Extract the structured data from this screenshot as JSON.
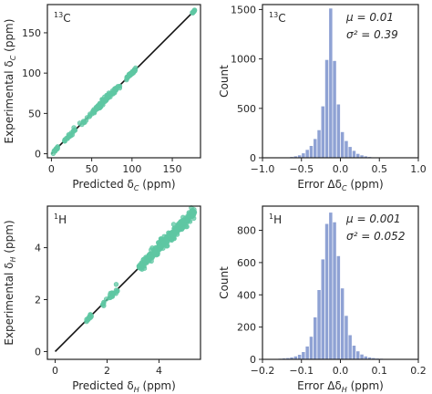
{
  "colors": {
    "scatter": "#5fc7a3",
    "line": "#111111",
    "bars": "#8fa2d4",
    "frame": "#222222",
    "text": "#262626"
  },
  "chart_data": [
    {
      "id": "c13_scatter",
      "type": "scatter",
      "title": "13C",
      "title_mass": "13",
      "title_element": "C",
      "xlabel": "Predicted δC (ppm)",
      "xlabel_main": "Predicted δ",
      "xlabel_sub": "C",
      "xlabel_unit": " (ppm)",
      "ylabel": "Experimental δC (ppm)",
      "ylabel_main": "Experimental δ",
      "ylabel_sub": "C",
      "ylabel_unit": " (ppm)",
      "xlim": [
        -5,
        185
      ],
      "ylim": [
        -5,
        185
      ],
      "xticks": [
        0,
        50,
        100,
        150
      ],
      "yticks": [
        0,
        50,
        100,
        150
      ],
      "reference_line": {
        "x": [
          0,
          178
        ],
        "y": [
          0,
          178
        ]
      },
      "clusters": [
        {
          "x_range": [
            2,
            8
          ],
          "spread": 2,
          "n": 12
        },
        {
          "x_range": [
            15,
            30
          ],
          "spread": 3,
          "n": 20
        },
        {
          "x_range": [
            35,
            60
          ],
          "spread": 3,
          "n": 28
        },
        {
          "x_range": [
            55,
            85
          ],
          "spread": 3.5,
          "n": 70
        },
        {
          "x_range": [
            93,
            105
          ],
          "spread": 2.5,
          "n": 40
        },
        {
          "x_range": [
            174,
            178
          ],
          "spread": 1,
          "n": 10
        }
      ]
    },
    {
      "id": "c13_hist",
      "type": "bar",
      "title": "13C",
      "title_mass": "13",
      "title_element": "C",
      "xlabel": "Error ΔδC (ppm)",
      "xlabel_main": "Error Δδ",
      "xlabel_sub": "C",
      "xlabel_unit": " (ppm)",
      "ylabel": "Count",
      "mu": "μ = 0.01",
      "sigma2": "σ² = 0.39",
      "xlim": [
        -1.0,
        1.0
      ],
      "ylim": [
        0,
        1550
      ],
      "xticks": [
        -1.0,
        -0.5,
        0.0,
        0.5,
        1.0
      ],
      "xtick_labels": [
        "−1.0",
        "−0.5",
        "0.0",
        "0.5",
        "1.0"
      ],
      "yticks": [
        0,
        500,
        1000,
        1500
      ],
      "bin_start": -0.8,
      "bin_width": 0.05,
      "values": [
        2,
        3,
        5,
        8,
        15,
        25,
        45,
        80,
        120,
        190,
        280,
        520,
        990,
        1510,
        980,
        540,
        260,
        170,
        110,
        70,
        40,
        25,
        15,
        8,
        5,
        3,
        2,
        1,
        1,
        1,
        1,
        0
      ]
    },
    {
      "id": "h1_scatter",
      "type": "scatter",
      "title": "1H",
      "title_mass": "1",
      "title_element": "H",
      "xlabel": "Predicted δH (ppm)",
      "xlabel_main": "Predicted δ",
      "xlabel_sub": "H",
      "xlabel_unit": " (ppm)",
      "ylabel": "Experimental δH (ppm)",
      "ylabel_main": "Experimental δ",
      "ylabel_sub": "H",
      "ylabel_unit": " (ppm)",
      "xlim": [
        -0.3,
        5.6
      ],
      "ylim": [
        -0.3,
        5.6
      ],
      "xticks": [
        0,
        2,
        4
      ],
      "yticks": [
        0,
        2,
        4
      ],
      "reference_line": {
        "x": [
          0,
          5.4
        ],
        "y": [
          0,
          5.4
        ]
      },
      "clusters": [
        {
          "x_range": [
            1.2,
            1.4
          ],
          "spread": 0.08,
          "n": 15
        },
        {
          "x_range": [
            1.8,
            2.4
          ],
          "spread": 0.18,
          "n": 25
        },
        {
          "x_range": [
            3.2,
            4.2
          ],
          "spread": 0.18,
          "n": 140
        },
        {
          "x_range": [
            4.0,
            5.4
          ],
          "spread": 0.2,
          "n": 220
        }
      ]
    },
    {
      "id": "h1_hist",
      "type": "bar",
      "title": "1H",
      "title_mass": "1",
      "title_element": "H",
      "xlabel": "Error ΔδH (ppm)",
      "xlabel_main": "Error Δδ",
      "xlabel_sub": "H",
      "xlabel_unit": " (ppm)",
      "ylabel": "Count",
      "mu": "μ = 0.001",
      "sigma2": "σ² = 0.052",
      "xlim": [
        -0.2,
        0.2
      ],
      "ylim": [
        0,
        950
      ],
      "xticks": [
        -0.2,
        -0.1,
        0.0,
        0.1,
        0.2
      ],
      "xtick_labels": [
        "−0.2",
        "−0.1",
        "0.0",
        "0.1",
        "0.2"
      ],
      "yticks": [
        0,
        200,
        400,
        600,
        800
      ],
      "bin_start": -0.18,
      "bin_width": 0.01,
      "values": [
        2,
        3,
        4,
        6,
        8,
        12,
        18,
        28,
        45,
        80,
        140,
        260,
        430,
        620,
        840,
        910,
        850,
        640,
        440,
        270,
        150,
        85,
        50,
        30,
        18,
        12,
        8,
        5,
        4,
        3,
        2,
        2,
        1,
        1,
        1
      ]
    }
  ]
}
